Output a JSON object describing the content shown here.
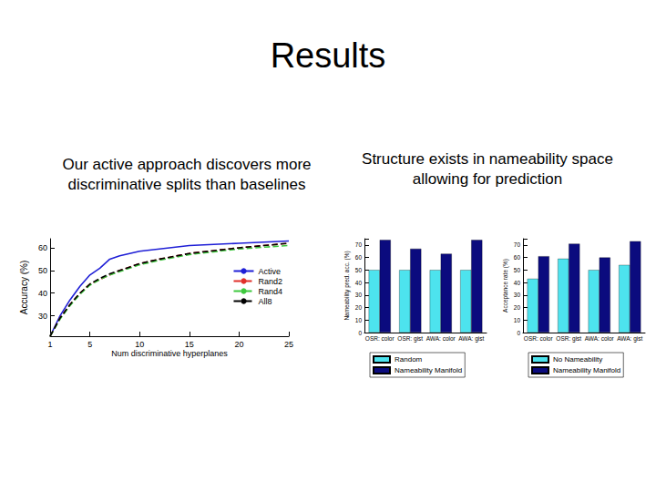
{
  "slide": {
    "title": "Results",
    "captions": [
      "Our active approach discovers more discriminative splits than baselines",
      "Structure exists in nameability space allowing for prediction"
    ]
  },
  "chart_data": [
    {
      "type": "line",
      "x_label": "Num discriminative hyperplanes",
      "y_label": "Accuracy (%)",
      "x": [
        1,
        2,
        3,
        4,
        5,
        6,
        7,
        8,
        10,
        12,
        15,
        20,
        25
      ],
      "series": [
        {
          "name": "Active",
          "color": "#1f1fd6",
          "line_style": "solid",
          "values": [
            21,
            30,
            37,
            43,
            48,
            51,
            55,
            56.5,
            58.5,
            59.5,
            61,
            62,
            63
          ]
        },
        {
          "name": "Rand2",
          "color": "#e0302a",
          "line_style": "dashed",
          "values": [
            21,
            29,
            35,
            40,
            44,
            46,
            48,
            50,
            53,
            55,
            57.5,
            60,
            62
          ]
        },
        {
          "name": "Rand4",
          "color": "#3ec83e",
          "line_style": "dashed",
          "values": [
            21,
            28.5,
            34.5,
            39.5,
            43.5,
            46,
            48,
            49.5,
            52.5,
            54.5,
            57,
            59.5,
            61
          ]
        },
        {
          "name": "All8",
          "color": "#000000",
          "line_style": "dashed",
          "values": [
            21,
            29,
            35,
            40,
            44,
            46.5,
            48.5,
            50,
            53,
            55,
            57.5,
            60,
            62
          ]
        }
      ],
      "xlim": [
        1,
        25
      ],
      "xticks": [
        1,
        5,
        10,
        15,
        20,
        25
      ],
      "ylim": [
        21,
        64
      ],
      "yticks": [
        30,
        40,
        50,
        60
      ],
      "grid": false,
      "legend": "lower right",
      "marker": "none"
    },
    {
      "type": "bar",
      "y_label": "Nameability pred. acc. (%)",
      "categories": [
        "OSR: color",
        "OSR: gist",
        "AWA: color",
        "AWA: gist"
      ],
      "series": [
        {
          "name": "Random",
          "color": "#4de3ee",
          "values": [
            50,
            50,
            50,
            50
          ]
        },
        {
          "name": "Nameability Manifold",
          "color": "#0b0b7e",
          "values": [
            74,
            67,
            63,
            74
          ]
        }
      ],
      "ylim": [
        0,
        75
      ],
      "yticks": [
        0,
        10,
        20,
        30,
        40,
        50,
        60,
        70
      ],
      "grid": false,
      "legend": "bottom"
    },
    {
      "type": "bar",
      "y_label": "Acceptance rate (%)",
      "categories": [
        "OSR: color",
        "OSR: gist",
        "AWA: color",
        "AWA: gist"
      ],
      "series": [
        {
          "name": "No Nameability",
          "color": "#4de3ee",
          "values": [
            43,
            59,
            50,
            54
          ]
        },
        {
          "name": "Nameability Manifold",
          "color": "#0b0b7e",
          "values": [
            61,
            71,
            60,
            73
          ]
        }
      ],
      "ylim": [
        0,
        75
      ],
      "yticks": [
        0,
        10,
        20,
        30,
        40,
        50,
        60,
        70
      ],
      "grid": false,
      "legend": "bottom"
    }
  ]
}
